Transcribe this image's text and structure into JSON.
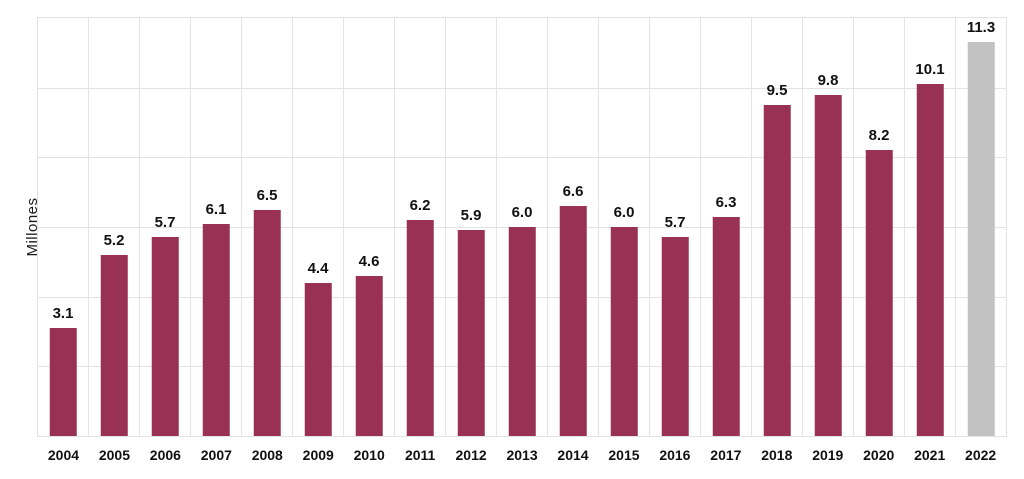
{
  "chart_data": {
    "type": "bar",
    "title": "",
    "xlabel": "",
    "ylabel": "Millones",
    "categories": [
      "2004",
      "2005",
      "2006",
      "2007",
      "2008",
      "2009",
      "2010",
      "2011",
      "2012",
      "2013",
      "2014",
      "2015",
      "2016",
      "2017",
      "2018",
      "2019",
      "2020",
      "2021",
      "2022"
    ],
    "values": [
      3.1,
      5.2,
      5.7,
      6.1,
      6.5,
      4.4,
      4.6,
      6.2,
      5.9,
      6.0,
      6.6,
      6.0,
      5.7,
      6.3,
      9.5,
      9.8,
      8.2,
      10.1,
      11.3
    ],
    "value_labels": [
      "3.1",
      "5.2",
      "5.7",
      "6.1",
      "6.5",
      "4.4",
      "4.6",
      "6.2",
      "5.9",
      "6.0",
      "6.6",
      "6.0",
      "5.7",
      "6.3",
      "9.5",
      "9.8",
      "8.2",
      "10.1",
      "11.3"
    ],
    "ylim": [
      0,
      12
    ],
    "y_gridline_interval": 2,
    "grid": true,
    "legend": "none",
    "bar_color": "#993154",
    "last_bar_color": "#c2c2c2",
    "gridline_color": "#e3e3e3",
    "label_color": "#111111"
  }
}
